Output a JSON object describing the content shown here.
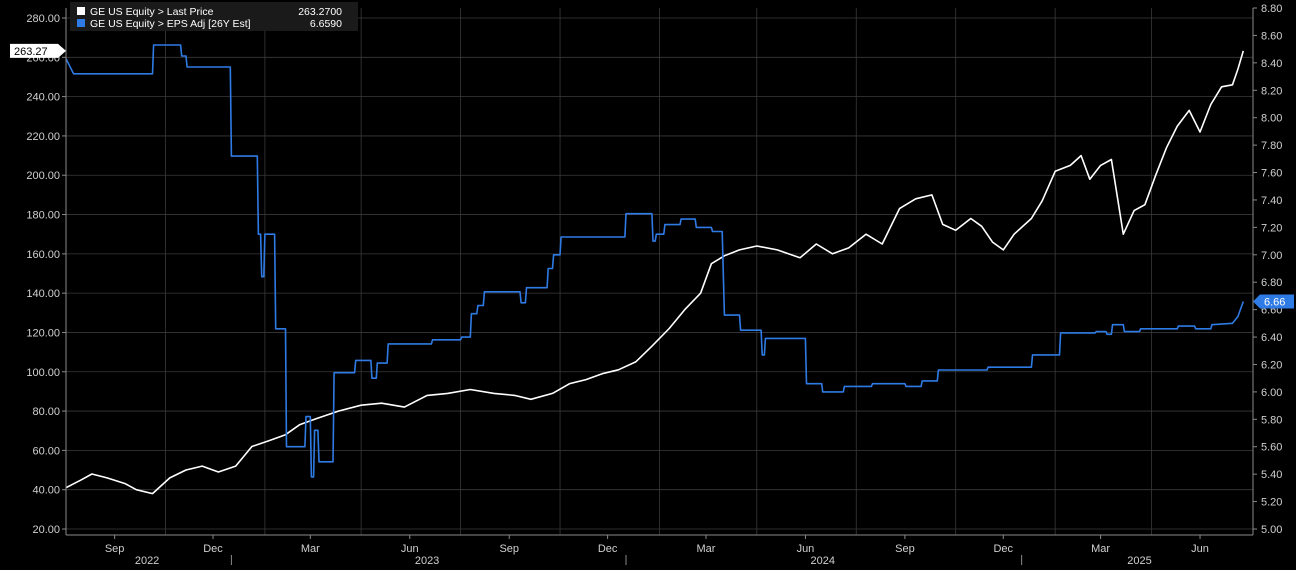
{
  "legend": [
    {
      "label": "GE US Equity > Last Price",
      "value": "263.2700",
      "color": "#ffffff"
    },
    {
      "label": "GE US Equity > EPS Adj [26Y Est]",
      "value": "6.6590",
      "color": "#2f7be5"
    }
  ],
  "badges": {
    "price_last": "263.27",
    "eps_last": "6.66"
  },
  "chart_data": {
    "type": "line",
    "title": "",
    "xlabel": "",
    "ylabel_left": "",
    "ylabel_right": "",
    "x_month_ticks": [
      "Sep",
      "Dec",
      "Mar",
      "Jun",
      "Sep",
      "Dec",
      "Mar",
      "Jun",
      "Sep",
      "Dec",
      "Mar",
      "Jun"
    ],
    "x_year_labels": [
      "2022",
      "2023",
      "2024",
      "2025"
    ],
    "left_axis": {
      "min": 20,
      "max": 280,
      "step": 20,
      "ticks": [
        "20.00",
        "40.00",
        "60.00",
        "80.00",
        "100.00",
        "120.00",
        "140.00",
        "160.00",
        "180.00",
        "200.00",
        "220.00",
        "240.00",
        "260.00",
        "280.00"
      ]
    },
    "right_axis": {
      "min": 5.0,
      "max": 8.8,
      "step": 0.2,
      "ticks": [
        "5.00",
        "5.20",
        "5.40",
        "5.60",
        "5.80",
        "6.00",
        "6.20",
        "6.40",
        "6.60",
        "6.80",
        "7.00",
        "7.20",
        "7.40",
        "7.60",
        "7.80",
        "8.00",
        "8.20",
        "8.40",
        "8.60",
        "8.80"
      ]
    },
    "grid": true,
    "legend_position": "top-left",
    "series": [
      {
        "name": "GE US Equity > Last Price",
        "axis": "left",
        "color": "#ffffff",
        "points": [
          [
            "2022-08-01",
            41
          ],
          [
            "2022-08-15",
            45
          ],
          [
            "2022-08-25",
            48
          ],
          [
            "2022-09-08",
            46
          ],
          [
            "2022-09-25",
            43
          ],
          [
            "2022-10-05",
            40
          ],
          [
            "2022-10-20",
            38
          ],
          [
            "2022-11-05",
            46
          ],
          [
            "2022-11-20",
            50
          ],
          [
            "2022-12-05",
            52
          ],
          [
            "2022-12-20",
            49
          ],
          [
            "2023-01-05",
            52
          ],
          [
            "2023-01-20",
            62
          ],
          [
            "2023-02-05",
            65
          ],
          [
            "2023-02-20",
            68
          ],
          [
            "2023-03-05",
            73
          ],
          [
            "2023-03-20",
            76
          ],
          [
            "2023-04-10",
            80
          ],
          [
            "2023-05-01",
            83
          ],
          [
            "2023-05-20",
            84
          ],
          [
            "2023-06-10",
            82
          ],
          [
            "2023-07-01",
            88
          ],
          [
            "2023-07-20",
            89
          ],
          [
            "2023-08-10",
            91
          ],
          [
            "2023-09-01",
            89
          ],
          [
            "2023-09-20",
            88
          ],
          [
            "2023-10-05",
            86
          ],
          [
            "2023-10-25",
            89
          ],
          [
            "2023-11-10",
            94
          ],
          [
            "2023-11-25",
            96
          ],
          [
            "2023-12-10",
            99
          ],
          [
            "2023-12-25",
            101
          ],
          [
            "2024-01-10",
            105
          ],
          [
            "2024-01-25",
            113
          ],
          [
            "2024-02-10",
            122
          ],
          [
            "2024-02-25",
            132
          ],
          [
            "2024-03-10",
            140
          ],
          [
            "2024-03-20",
            155
          ],
          [
            "2024-04-01",
            159
          ],
          [
            "2024-04-15",
            162
          ],
          [
            "2024-05-01",
            164
          ],
          [
            "2024-05-20",
            162
          ],
          [
            "2024-06-10",
            158
          ],
          [
            "2024-06-25",
            165
          ],
          [
            "2024-07-10",
            160
          ],
          [
            "2024-07-25",
            163
          ],
          [
            "2024-08-10",
            170
          ],
          [
            "2024-08-25",
            165
          ],
          [
            "2024-09-10",
            183
          ],
          [
            "2024-09-25",
            188
          ],
          [
            "2024-10-10",
            190
          ],
          [
            "2024-10-20",
            175
          ],
          [
            "2024-11-01",
            172
          ],
          [
            "2024-11-15",
            178
          ],
          [
            "2024-11-25",
            174
          ],
          [
            "2024-12-05",
            166
          ],
          [
            "2024-12-15",
            162
          ],
          [
            "2024-12-25",
            170
          ],
          [
            "2025-01-10",
            178
          ],
          [
            "2025-01-20",
            187
          ],
          [
            "2025-02-01",
            202
          ],
          [
            "2025-02-15",
            205
          ],
          [
            "2025-02-25",
            210
          ],
          [
            "2025-03-05",
            198
          ],
          [
            "2025-03-15",
            205
          ],
          [
            "2025-03-25",
            208
          ],
          [
            "2025-04-05",
            170
          ],
          [
            "2025-04-15",
            182
          ],
          [
            "2025-04-25",
            185
          ],
          [
            "2025-05-05",
            200
          ],
          [
            "2025-05-15",
            214
          ],
          [
            "2025-05-25",
            225
          ],
          [
            "2025-06-05",
            233
          ],
          [
            "2025-06-15",
            222
          ],
          [
            "2025-06-25",
            236
          ],
          [
            "2025-07-05",
            245
          ],
          [
            "2025-07-15",
            246
          ],
          [
            "2025-07-20",
            254
          ],
          [
            "2025-07-25",
            263.27
          ]
        ]
      },
      {
        "name": "GE US Equity > EPS Adj [26Y Est]",
        "axis": "right",
        "color": "#2f7be5",
        "points": [
          [
            "2022-08-01",
            8.43
          ],
          [
            "2022-08-08",
            8.32
          ],
          [
            "2022-10-20",
            8.32
          ],
          [
            "2022-10-21",
            8.53
          ],
          [
            "2022-11-15",
            8.53
          ],
          [
            "2022-11-16",
            8.45
          ],
          [
            "2022-11-20",
            8.45
          ],
          [
            "2022-11-21",
            8.37
          ],
          [
            "2022-12-31",
            8.37
          ],
          [
            "2023-01-01",
            7.72
          ],
          [
            "2023-01-25",
            7.72
          ],
          [
            "2023-01-26",
            7.15
          ],
          [
            "2023-01-28",
            7.15
          ],
          [
            "2023-01-29",
            6.84
          ],
          [
            "2023-01-31",
            6.84
          ],
          [
            "2023-02-01",
            7.15
          ],
          [
            "2023-02-10",
            7.15
          ],
          [
            "2023-02-11",
            6.46
          ],
          [
            "2023-02-20",
            6.46
          ],
          [
            "2023-02-21",
            5.6
          ],
          [
            "2023-03-10",
            5.6
          ],
          [
            "2023-03-11",
            5.82
          ],
          [
            "2023-03-15",
            5.82
          ],
          [
            "2023-03-16",
            5.38
          ],
          [
            "2023-03-18",
            5.38
          ],
          [
            "2023-03-19",
            5.72
          ],
          [
            "2023-03-22",
            5.72
          ],
          [
            "2023-03-23",
            5.49
          ],
          [
            "2023-04-05",
            5.49
          ],
          [
            "2023-04-06",
            6.14
          ],
          [
            "2023-04-25",
            6.14
          ],
          [
            "2023-04-26",
            6.23
          ],
          [
            "2023-05-10",
            6.23
          ],
          [
            "2023-05-11",
            6.1
          ],
          [
            "2023-05-15",
            6.1
          ],
          [
            "2023-05-16",
            6.21
          ],
          [
            "2023-05-25",
            6.21
          ],
          [
            "2023-05-26",
            6.35
          ],
          [
            "2023-07-05",
            6.35
          ],
          [
            "2023-07-06",
            6.38
          ],
          [
            "2023-08-01",
            6.38
          ],
          [
            "2023-08-02",
            6.4
          ],
          [
            "2023-08-10",
            6.4
          ],
          [
            "2023-08-11",
            6.57
          ],
          [
            "2023-08-16",
            6.57
          ],
          [
            "2023-08-17",
            6.63
          ],
          [
            "2023-08-22",
            6.63
          ],
          [
            "2023-08-23",
            6.73
          ],
          [
            "2023-09-25",
            6.73
          ],
          [
            "2023-09-26",
            6.65
          ],
          [
            "2023-09-30",
            6.65
          ],
          [
            "2023-10-01",
            6.76
          ],
          [
            "2023-10-20",
            6.76
          ],
          [
            "2023-10-21",
            6.9
          ],
          [
            "2023-10-25",
            6.9
          ],
          [
            "2023-10-26",
            7.0
          ],
          [
            "2023-11-01",
            7.0
          ],
          [
            "2023-11-02",
            7.13
          ],
          [
            "2023-12-31",
            7.13
          ],
          [
            "2024-01-01",
            7.3
          ],
          [
            "2024-01-25",
            7.3
          ],
          [
            "2024-01-26",
            7.1
          ],
          [
            "2024-01-28",
            7.1
          ],
          [
            "2024-01-29",
            7.15
          ],
          [
            "2024-02-05",
            7.15
          ],
          [
            "2024-02-06",
            7.22
          ],
          [
            "2024-02-20",
            7.22
          ],
          [
            "2024-02-21",
            7.26
          ],
          [
            "2024-03-05",
            7.26
          ],
          [
            "2024-03-06",
            7.2
          ],
          [
            "2024-03-20",
            7.2
          ],
          [
            "2024-03-21",
            7.17
          ],
          [
            "2024-03-30",
            7.17
          ],
          [
            "2024-04-01",
            6.56
          ],
          [
            "2024-04-15",
            6.56
          ],
          [
            "2024-04-16",
            6.45
          ],
          [
            "2024-05-05",
            6.45
          ],
          [
            "2024-05-06",
            6.27
          ],
          [
            "2024-05-08",
            6.27
          ],
          [
            "2024-05-09",
            6.39
          ],
          [
            "2024-06-15",
            6.39
          ],
          [
            "2024-06-16",
            6.06
          ],
          [
            "2024-06-30",
            6.06
          ],
          [
            "2024-07-01",
            6.0
          ],
          [
            "2024-07-20",
            6.0
          ],
          [
            "2024-07-21",
            6.04
          ],
          [
            "2024-08-15",
            6.04
          ],
          [
            "2024-08-16",
            6.06
          ],
          [
            "2024-09-15",
            6.06
          ],
          [
            "2024-09-16",
            6.04
          ],
          [
            "2024-09-30",
            6.04
          ],
          [
            "2024-10-01",
            6.08
          ],
          [
            "2024-10-15",
            6.08
          ],
          [
            "2024-10-16",
            6.16
          ],
          [
            "2024-11-30",
            6.16
          ],
          [
            "2024-12-01",
            6.18
          ],
          [
            "2025-01-10",
            6.18
          ],
          [
            "2025-01-11",
            6.27
          ],
          [
            "2025-02-05",
            6.27
          ],
          [
            "2025-02-06",
            6.43
          ],
          [
            "2025-03-10",
            6.43
          ],
          [
            "2025-03-11",
            6.44
          ],
          [
            "2025-03-20",
            6.44
          ],
          [
            "2025-03-21",
            6.42
          ],
          [
            "2025-03-25",
            6.42
          ],
          [
            "2025-03-26",
            6.49
          ],
          [
            "2025-04-05",
            6.49
          ],
          [
            "2025-04-06",
            6.44
          ],
          [
            "2025-04-20",
            6.44
          ],
          [
            "2025-04-21",
            6.46
          ],
          [
            "2025-05-25",
            6.46
          ],
          [
            "2025-05-26",
            6.48
          ],
          [
            "2025-06-10",
            6.48
          ],
          [
            "2025-06-11",
            6.46
          ],
          [
            "2025-06-25",
            6.46
          ],
          [
            "2025-06-26",
            6.49
          ],
          [
            "2025-07-15",
            6.5
          ],
          [
            "2025-07-20",
            6.55
          ],
          [
            "2025-07-25",
            6.659
          ]
        ]
      }
    ]
  }
}
